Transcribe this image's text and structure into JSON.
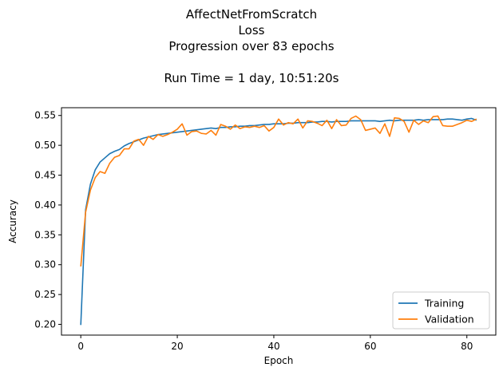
{
  "chart_data": {
    "type": "line",
    "title_lines": [
      "AffectNetFromScratch",
      "Loss",
      "Progression over 83 epochs"
    ],
    "subtitle": "Run Time = 1 day, 10:51:20s",
    "xlabel": "Epoch",
    "ylabel": "Accuracy",
    "xlim": [
      -4,
      86
    ],
    "ylim": [
      0.182,
      0.563
    ],
    "xticks": [
      0,
      20,
      40,
      60,
      80
    ],
    "yticks": [
      0.2,
      0.25,
      0.3,
      0.35,
      0.4,
      0.45,
      0.5,
      0.55
    ],
    "grid": false,
    "legend_position": "lower-right",
    "x": [
      0,
      1,
      2,
      3,
      4,
      5,
      6,
      7,
      8,
      9,
      10,
      11,
      12,
      13,
      14,
      15,
      16,
      17,
      18,
      19,
      20,
      21,
      22,
      23,
      24,
      25,
      26,
      27,
      28,
      29,
      30,
      31,
      32,
      33,
      34,
      35,
      36,
      37,
      38,
      39,
      40,
      41,
      42,
      43,
      44,
      45,
      46,
      47,
      48,
      49,
      50,
      51,
      52,
      53,
      54,
      55,
      56,
      57,
      58,
      59,
      60,
      61,
      62,
      63,
      64,
      65,
      66,
      67,
      68,
      69,
      70,
      71,
      72,
      73,
      74,
      75,
      76,
      77,
      78,
      79,
      80,
      81,
      82
    ],
    "series": [
      {
        "name": "Training",
        "color": "#1f77b4",
        "values": [
          0.199,
          0.392,
          0.435,
          0.459,
          0.472,
          0.479,
          0.486,
          0.49,
          0.493,
          0.499,
          0.503,
          0.506,
          0.509,
          0.512,
          0.514,
          0.516,
          0.518,
          0.519,
          0.52,
          0.521,
          0.522,
          0.523,
          0.524,
          0.525,
          0.526,
          0.527,
          0.528,
          0.529,
          0.528,
          0.53,
          0.53,
          0.531,
          0.531,
          0.532,
          0.532,
          0.533,
          0.533,
          0.534,
          0.535,
          0.535,
          0.536,
          0.536,
          0.536,
          0.537,
          0.537,
          0.538,
          0.538,
          0.538,
          0.539,
          0.539,
          0.54,
          0.54,
          0.539,
          0.54,
          0.54,
          0.54,
          0.541,
          0.541,
          0.541,
          0.541,
          0.541,
          0.541,
          0.54,
          0.541,
          0.542,
          0.541,
          0.542,
          0.542,
          0.542,
          0.542,
          0.543,
          0.542,
          0.543,
          0.543,
          0.543,
          0.543,
          0.544,
          0.544,
          0.543,
          0.542,
          0.544,
          0.545,
          0.542
        ]
      },
      {
        "name": "Validation",
        "color": "#ff7f0e",
        "values": [
          0.297,
          0.388,
          0.425,
          0.446,
          0.456,
          0.453,
          0.47,
          0.48,
          0.483,
          0.494,
          0.494,
          0.507,
          0.51,
          0.5,
          0.515,
          0.51,
          0.518,
          0.515,
          0.518,
          0.522,
          0.527,
          0.536,
          0.517,
          0.523,
          0.524,
          0.52,
          0.519,
          0.525,
          0.517,
          0.535,
          0.532,
          0.527,
          0.534,
          0.528,
          0.531,
          0.53,
          0.532,
          0.53,
          0.533,
          0.524,
          0.53,
          0.544,
          0.534,
          0.538,
          0.536,
          0.544,
          0.529,
          0.541,
          0.54,
          0.537,
          0.533,
          0.542,
          0.528,
          0.543,
          0.533,
          0.534,
          0.545,
          0.549,
          0.543,
          0.525,
          0.527,
          0.529,
          0.52,
          0.536,
          0.515,
          0.546,
          0.545,
          0.54,
          0.522,
          0.542,
          0.535,
          0.541,
          0.538,
          0.548,
          0.549,
          0.533,
          0.532,
          0.532,
          0.535,
          0.538,
          0.542,
          0.54,
          0.544
        ]
      }
    ]
  }
}
